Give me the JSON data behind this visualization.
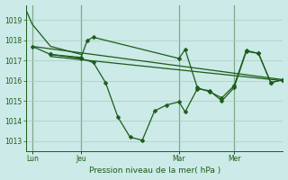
{
  "bg_color": "#cceae7",
  "grid_color": "#aaccbb",
  "line_color": "#1a5c1a",
  "marker_color": "#1a5c1a",
  "ylabel_text": "Pression niveau de la mer( hPa )",
  "ylim": [
    1012.5,
    1019.75
  ],
  "yticks": [
    1013,
    1014,
    1015,
    1016,
    1017,
    1018,
    1019
  ],
  "xtick_labels": [
    "Lun",
    "Jeu",
    "Mar",
    "Mer"
  ],
  "xtick_positions": [
    2,
    18,
    50,
    68
  ],
  "vline_positions": [
    2,
    18,
    50,
    68
  ],
  "xlim": [
    0,
    84
  ],
  "series_line1": {
    "x": [
      0,
      2,
      8,
      18
    ],
    "y": [
      1019.5,
      1018.8,
      1017.7,
      1017.3
    ]
  },
  "series_line2": {
    "x": [
      2,
      84
    ],
    "y": [
      1017.7,
      1016.05
    ]
  },
  "series_line3": {
    "x": [
      8,
      84
    ],
    "y": [
      1017.2,
      1016.0
    ]
  },
  "series_wiggly1": {
    "x": [
      2,
      8,
      18,
      20,
      22,
      50,
      52,
      56,
      60,
      64,
      68,
      72,
      76,
      80,
      84
    ],
    "y": [
      1017.7,
      1017.3,
      1017.15,
      1018.0,
      1018.15,
      1017.1,
      1017.55,
      1015.65,
      1015.45,
      1015.15,
      1015.75,
      1017.5,
      1017.35,
      1015.9,
      1016.05
    ]
  },
  "series_wiggly2": {
    "x": [
      8,
      18,
      22,
      26,
      30,
      34,
      38,
      42,
      46,
      50,
      52,
      56,
      60,
      64,
      68,
      72,
      76,
      80,
      84
    ],
    "y": [
      1017.3,
      1017.1,
      1016.9,
      1015.9,
      1014.2,
      1013.2,
      1013.05,
      1014.5,
      1014.8,
      1014.95,
      1014.45,
      1015.6,
      1015.5,
      1015.0,
      1015.65,
      1017.45,
      1017.35,
      1015.9,
      1016.05
    ]
  }
}
